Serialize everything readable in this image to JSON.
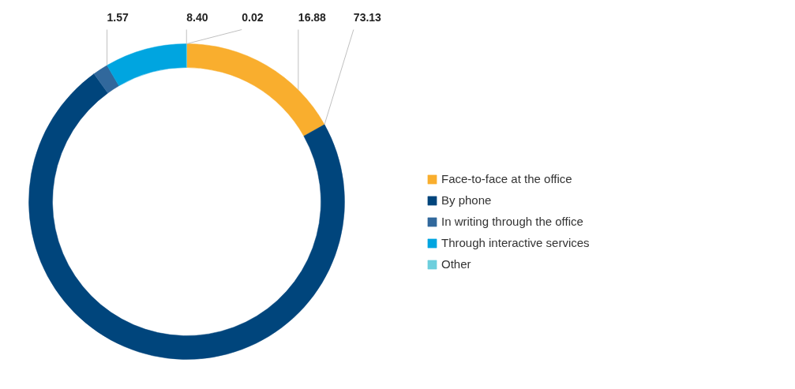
{
  "chart_data": {
    "type": "donut",
    "categories": [
      "Face-to-face at the office",
      "By phone",
      "In writing through the office",
      "Through interactive services",
      "Other"
    ],
    "values": [
      16.88,
      73.13,
      1.57,
      8.4,
      0.02
    ],
    "colors": [
      "#f9ae2e",
      "#00457c",
      "#31689c",
      "#00a5e0",
      "#6dcfdd"
    ],
    "value_labels": [
      "16.88",
      "73.13",
      "1.57",
      "8.40",
      "0.02"
    ],
    "legend": "right"
  }
}
